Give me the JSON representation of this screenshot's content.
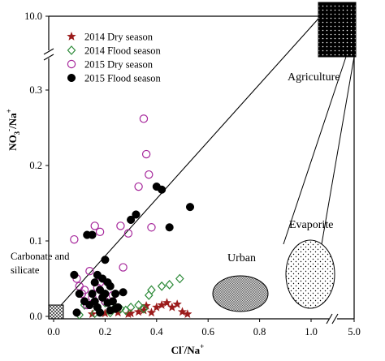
{
  "chart_data": {
    "type": "scatter",
    "xlabel": {
      "main": "Cl",
      "sup": "-",
      "den": "/Na",
      "densup": "+"
    },
    "ylabel": {
      "main": "NO",
      "sub": "3",
      "sup": "-",
      "den": "/Na",
      "densup": "+"
    },
    "x_ticks": [
      "0.0",
      "0.2",
      "0.4",
      "0.6",
      "0.8",
      "1.0",
      "5.0"
    ],
    "y_ticks": [
      "0.0",
      "0.1",
      "0.2",
      "0.3",
      "10.0"
    ],
    "x_break": [
      1.1,
      4.9
    ],
    "y_break": [
      0.34,
      9.9
    ],
    "xlim": [
      -0.06,
      5.0
    ],
    "ylim": [
      -0.005,
      10.0
    ],
    "legend_position": "top-left",
    "series": [
      {
        "name": "2014 Dry season",
        "marker": "star",
        "color": "#9b1b1b",
        "points": [
          [
            0.15,
            0.003
          ],
          [
            0.2,
            0.004
          ],
          [
            0.25,
            0.005
          ],
          [
            0.3,
            0.004
          ],
          [
            0.33,
            0.006
          ],
          [
            0.35,
            0.008
          ],
          [
            0.36,
            0.014
          ],
          [
            0.38,
            0.005
          ],
          [
            0.4,
            0.012
          ],
          [
            0.42,
            0.015
          ],
          [
            0.44,
            0.018
          ],
          [
            0.46,
            0.012
          ],
          [
            0.48,
            0.016
          ],
          [
            0.5,
            0.006
          ],
          [
            0.52,
            0.003
          ],
          [
            0.29,
            0.003
          ]
        ]
      },
      {
        "name": "2014 Flood season",
        "marker": "diamond",
        "color": "#2e8b3a",
        "points": [
          [
            0.1,
            0.002
          ],
          [
            0.12,
            0.015
          ],
          [
            0.16,
            0.004
          ],
          [
            0.2,
            0.018
          ],
          [
            0.22,
            0.005
          ],
          [
            0.24,
            0.012
          ],
          [
            0.26,
            0.01
          ],
          [
            0.28,
            0.008
          ],
          [
            0.3,
            0.012
          ],
          [
            0.33,
            0.015
          ],
          [
            0.35,
            0.01
          ],
          [
            0.37,
            0.028
          ],
          [
            0.38,
            0.035
          ],
          [
            0.42,
            0.04
          ],
          [
            0.45,
            0.042
          ],
          [
            0.49,
            0.05
          ]
        ]
      },
      {
        "name": "2015 Dry season",
        "marker": "circle-open",
        "color": "#a6279b",
        "points": [
          [
            0.08,
            0.102
          ],
          [
            0.1,
            0.04
          ],
          [
            0.12,
            0.035
          ],
          [
            0.14,
            0.06
          ],
          [
            0.16,
            0.12
          ],
          [
            0.17,
            0.038
          ],
          [
            0.18,
            0.112
          ],
          [
            0.15,
            0.025
          ],
          [
            0.2,
            0.02
          ],
          [
            0.23,
            0.028
          ],
          [
            0.26,
            0.12
          ],
          [
            0.27,
            0.065
          ],
          [
            0.29,
            0.11
          ],
          [
            0.33,
            0.172
          ],
          [
            0.35,
            0.262
          ],
          [
            0.36,
            0.215
          ],
          [
            0.37,
            0.188
          ],
          [
            0.38,
            0.118
          ],
          [
            0.09,
            0.05
          ],
          [
            0.11,
            0.03
          ],
          [
            0.13,
            0.015
          ],
          [
            0.18,
            0.045
          ],
          [
            0.19,
            0.025
          ]
        ]
      },
      {
        "name": "2015 Flood season",
        "marker": "circle-filled",
        "color": "#000000",
        "points": [
          [
            0.08,
            0.055
          ],
          [
            0.1,
            0.03
          ],
          [
            0.13,
            0.108
          ],
          [
            0.15,
            0.108
          ],
          [
            0.16,
            0.045
          ],
          [
            0.17,
            0.055
          ],
          [
            0.18,
            0.035
          ],
          [
            0.19,
            0.025
          ],
          [
            0.2,
            0.075
          ],
          [
            0.21,
            0.018
          ],
          [
            0.22,
            0.04
          ],
          [
            0.22,
            0.008
          ],
          [
            0.23,
            0.02
          ],
          [
            0.24,
            0.01
          ],
          [
            0.25,
            0.012
          ],
          [
            0.27,
            0.032
          ],
          [
            0.3,
            0.128
          ],
          [
            0.32,
            0.135
          ],
          [
            0.4,
            0.172
          ],
          [
            0.42,
            0.168
          ],
          [
            0.45,
            0.118
          ],
          [
            0.53,
            0.145
          ],
          [
            0.12,
            0.02
          ],
          [
            0.14,
            0.015
          ],
          [
            0.16,
            0.02
          ],
          [
            0.17,
            0.012
          ],
          [
            0.18,
            0.005
          ],
          [
            0.19,
            0.05
          ],
          [
            0.2,
            0.03
          ],
          [
            0.21,
            0.045
          ],
          [
            0.15,
            0.03
          ],
          [
            0.09,
            0.005
          ],
          [
            0.24,
            0.03
          ]
        ]
      }
    ],
    "zones": [
      {
        "label": "Agriculture"
      },
      {
        "label": "Evaporite"
      },
      {
        "label": "Urban"
      },
      {
        "label_line1": "Carbonate and",
        "label_line2": "silicate"
      }
    ],
    "colors": {
      "axis": "#000000",
      "zone_fill": "#000000"
    }
  }
}
